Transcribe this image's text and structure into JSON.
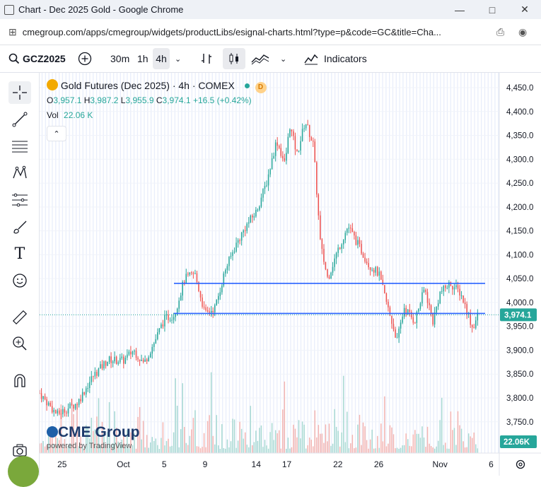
{
  "window": {
    "title": "Chart - Dec 2025 Gold - Google Chrome",
    "url": "cmegroup.com/apps/cmegroup/widgets/productLibs/esignal-charts.html?type=p&code=GC&title=Cha..."
  },
  "toolbar": {
    "symbol": "GCZ2025",
    "intervals": [
      "30m",
      "1h",
      "4h"
    ],
    "active_interval": "4h",
    "indicators_label": "Indicators"
  },
  "legend": {
    "title": "Gold Futures (Dec 2025) · 4h · COMEX",
    "badge": "D",
    "o_label": "O",
    "o": "3,957.1",
    "h_label": "H",
    "h": "3,987.2",
    "l_label": "L",
    "l": "3,955.9",
    "c_label": "C",
    "c": "3,974.1",
    "change": "+16.5 (+0.42%)",
    "vol_label": "Vol",
    "vol_value": "22.06 K"
  },
  "branding": {
    "logo": "CME Group",
    "powered_by": "powered by TradingView"
  },
  "colors": {
    "up": "#26a69a",
    "down": "#ef5350",
    "hline": "#2962ff",
    "session_shade": "#e9eefb",
    "price_label": "#26a69a"
  },
  "chart_data": {
    "type": "candlestick",
    "title": "Gold Futures (Dec 2025) · 4h · COMEX",
    "y_axis_ticks": [
      "4,450.0",
      "4,400.0",
      "4,350.0",
      "4,300.0",
      "4,250.0",
      "4,200.0",
      "4,150.0",
      "4,100.0",
      "4,050.0",
      "4,000.0",
      "3,950.0",
      "3,900.0",
      "3,850.0",
      "3,800.0",
      "3,750.0"
    ],
    "ylim": [
      3730,
      4460
    ],
    "x_axis_ticks": [
      {
        "label": "25",
        "day": -6
      },
      {
        "label": "Oct",
        "day": 0
      },
      {
        "label": "5",
        "day": 4
      },
      {
        "label": "9",
        "day": 8
      },
      {
        "label": "14",
        "day": 13
      },
      {
        "label": "17",
        "day": 16
      },
      {
        "label": "22",
        "day": 21
      },
      {
        "label": "26",
        "day": 25
      },
      {
        "label": "Nov",
        "day": 31
      },
      {
        "label": "6",
        "day": 36
      }
    ],
    "xlim_days": [
      -8.2,
      36.8
    ],
    "last_price": "3,974.1",
    "last_volume": "22.06K",
    "horizontal_lines": [
      4040,
      3977
    ],
    "price_path": [
      [
        -8.2,
        3810
      ],
      [
        -6.5,
        3765
      ],
      [
        -4.5,
        3790
      ],
      [
        -3.0,
        3845
      ],
      [
        -1.5,
        3880
      ],
      [
        0,
        3878
      ],
      [
        1.0,
        3900
      ],
      [
        2.0,
        3872
      ],
      [
        3.0,
        3915
      ],
      [
        4.0,
        3965
      ],
      [
        5.0,
        3975
      ],
      [
        6.0,
        4050
      ],
      [
        7.0,
        4060
      ],
      [
        8.0,
        3975
      ],
      [
        9.0,
        3990
      ],
      [
        10.0,
        4070
      ],
      [
        11.0,
        4120
      ],
      [
        12.0,
        4160
      ],
      [
        13.0,
        4190
      ],
      [
        14.0,
        4250
      ],
      [
        15.0,
        4340
      ],
      [
        15.8,
        4290
      ],
      [
        16.3,
        4370
      ],
      [
        17.0,
        4310
      ],
      [
        17.8,
        4380
      ],
      [
        18.6,
        4330
      ],
      [
        19.3,
        4120
      ],
      [
        20.0,
        4050
      ],
      [
        21.0,
        4110
      ],
      [
        22.0,
        4160
      ],
      [
        23.0,
        4120
      ],
      [
        24.0,
        4080
      ],
      [
        25.0,
        4060
      ],
      [
        26.0,
        3980
      ],
      [
        26.8,
        3920
      ],
      [
        27.5,
        3990
      ],
      [
        28.5,
        3960
      ],
      [
        29.5,
        4030
      ],
      [
        30.3,
        3960
      ],
      [
        31.0,
        4020
      ],
      [
        32.0,
        4040
      ],
      [
        33.0,
        4020
      ],
      [
        33.6,
        3985
      ],
      [
        34.2,
        3945
      ],
      [
        34.7,
        3974
      ]
    ],
    "volume_scale_max": 100000
  }
}
